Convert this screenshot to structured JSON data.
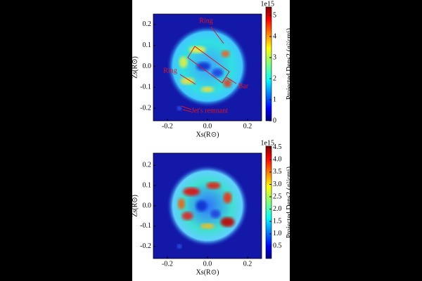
{
  "chart_data": [
    {
      "type": "heatmap",
      "xlabel": "Xs(R⊙)",
      "ylabel": "Zs(R⊙)",
      "xlim": [
        -0.27,
        0.27
      ],
      "xticks": [
        {
          "value": -0.2,
          "label": "-0.2"
        },
        {
          "value": 0,
          "label": "0.0"
        },
        {
          "value": 0.2,
          "label": "0.2"
        }
      ],
      "ylim": [
        -0.26,
        0.25
      ],
      "yticks": [
        {
          "value": 0.2,
          "label": "0.2"
        },
        {
          "value": 0.1,
          "label": "0.1"
        },
        {
          "value": 0,
          "label": "0.0"
        },
        {
          "value": -0.1,
          "label": "-0.1"
        },
        {
          "value": -0.2,
          "label": "-0.2"
        }
      ],
      "colorbar_label": "Projected Dens2",
      "colorbar_unit": "(g²/cm⁶)",
      "colorbar_exponent": "1e15",
      "clim": [
        0,
        5.4
      ],
      "cticks": [
        0,
        1,
        2,
        3,
        4,
        5
      ],
      "annotations": [
        "Ring",
        "Ring",
        "Bar",
        "Jet's remnant"
      ]
    },
    {
      "type": "heatmap",
      "xlabel": "Xs(R⊙)",
      "ylabel": "Zs(R⊙)",
      "xlim": [
        -0.27,
        0.27
      ],
      "xticks": [
        {
          "value": -0.2,
          "label": "-0.2"
        },
        {
          "value": 0,
          "label": "0.0"
        },
        {
          "value": 0.2,
          "label": "0.2"
        }
      ],
      "ylim": [
        -0.26,
        0.26
      ],
      "yticks": [
        {
          "value": 0.2,
          "label": "0.2"
        },
        {
          "value": 0.1,
          "label": "0.1"
        },
        {
          "value": 0,
          "label": "0.0"
        },
        {
          "value": -0.1,
          "label": "-0.1"
        },
        {
          "value": -0.2,
          "label": "-0.2"
        }
      ],
      "colorbar_label": "Projected Dens2",
      "colorbar_unit": "(g²/cm⁶)",
      "colorbar_exponent": "1e15",
      "clim": [
        0,
        4.55
      ],
      "cticks": [
        0.5,
        1.0,
        1.5,
        2.0,
        2.5,
        3.0,
        3.5,
        4.0,
        4.5
      ]
    }
  ]
}
